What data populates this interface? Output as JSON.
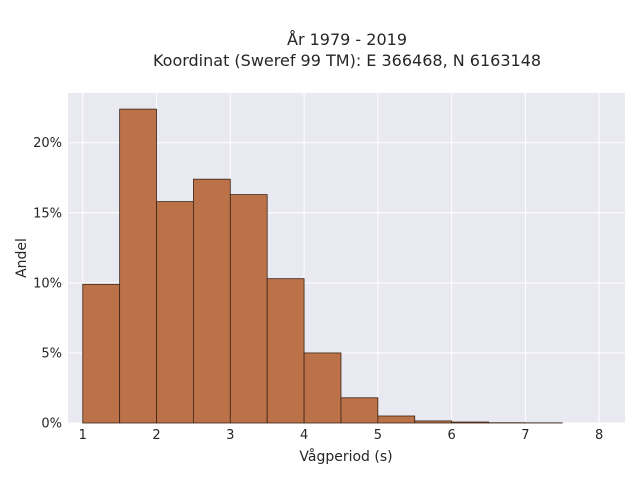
{
  "chart_data": {
    "type": "bar",
    "title_line1": "År 1979 - 2019",
    "title_line2": "Koordinat (Sweref 99 TM): E 366468, N 6163148",
    "xlabel": "Vågperiod (s)",
    "ylabel": "Andel",
    "xlim": [
      0.8,
      8.35
    ],
    "ylim": [
      0,
      0.2355
    ],
    "x_ticks": [
      1,
      2,
      3,
      4,
      5,
      6,
      7,
      8
    ],
    "y_ticks": [
      0,
      0.05,
      0.1,
      0.15,
      0.2
    ],
    "y_tick_labels": [
      "0%",
      "5%",
      "10%",
      "15%",
      "20%"
    ],
    "bin_width": 0.5,
    "bin_starts": [
      1.0,
      1.5,
      2.0,
      2.5,
      3.0,
      3.5,
      4.0,
      4.5,
      5.0,
      5.5,
      6.0,
      6.5,
      7.0
    ],
    "values": [
      0.099,
      0.224,
      0.158,
      0.174,
      0.163,
      0.103,
      0.05,
      0.018,
      0.005,
      0.0015,
      0.0007,
      0.0002,
      0.0001
    ],
    "grid": true,
    "colors": {
      "bar": "#bb7249",
      "edge": "#3b2416",
      "background": "#e9e9f1"
    }
  }
}
